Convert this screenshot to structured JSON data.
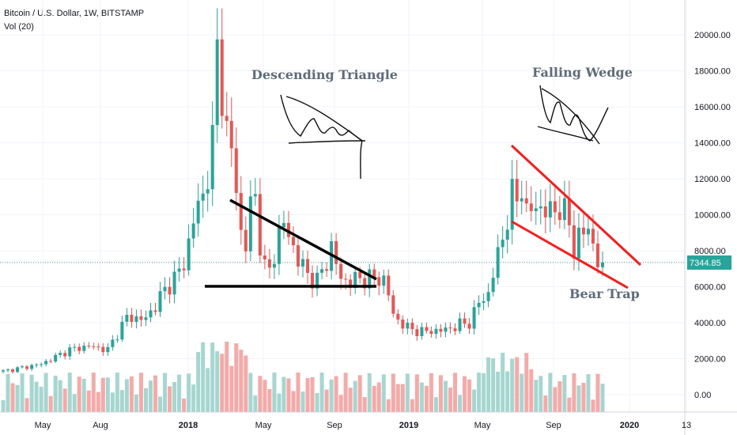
{
  "legend": {
    "symbol_line": "Bitcoin / U.S. Dollar, 1W, BITSTAMP",
    "volume_line": "Vol (20)"
  },
  "price_label": "7344.85",
  "colors": {
    "up": "#26a69a",
    "down": "#ef5350",
    "vol_up": "#a5d6d0",
    "vol_down": "#f7a9a7",
    "pattern_black": "#000000",
    "pattern_red": "#ff1a1a",
    "price_badge": "#26a69a",
    "grid": "#f0f3fa"
  },
  "annotations": {
    "descending_triangle": "Descending Triangle",
    "falling_wedge": "Falling Wedge",
    "bear_trap": "Bear Trap"
  },
  "chart_data": {
    "type": "candlestick",
    "title": "Bitcoin / U.S. Dollar, 1W, BITSTAMP",
    "y_axis": {
      "ticks": [
        0,
        2000,
        4000,
        6000,
        8000,
        10000,
        12000,
        14000,
        16000,
        18000,
        20000
      ],
      "tick_labels": [
        "0.00",
        "2000.00",
        "4000.00",
        "6000.00",
        "8000.00",
        "10000.00",
        "12000.00",
        "14000.00",
        "16000.00",
        "18000.00",
        "20000.00"
      ]
    },
    "x_axis": {
      "labels": [
        "May",
        "Aug",
        "2018",
        "May",
        "Sep",
        "2019",
        "May",
        "Sep",
        "2020",
        "13"
      ],
      "bold_labels": [
        "2018",
        "2019",
        "2020"
      ]
    },
    "last_price": 7344.85,
    "key_points": [
      {
        "date": "2017-12-17",
        "high": 19600
      },
      {
        "date": "2018-02-05",
        "low": 6000
      },
      {
        "date": "2018-11-19",
        "low": 3200
      },
      {
        "date": "2019-06-24",
        "high": 13800
      },
      {
        "date": "2019-11-18",
        "close": 7344.85
      }
    ]
  }
}
